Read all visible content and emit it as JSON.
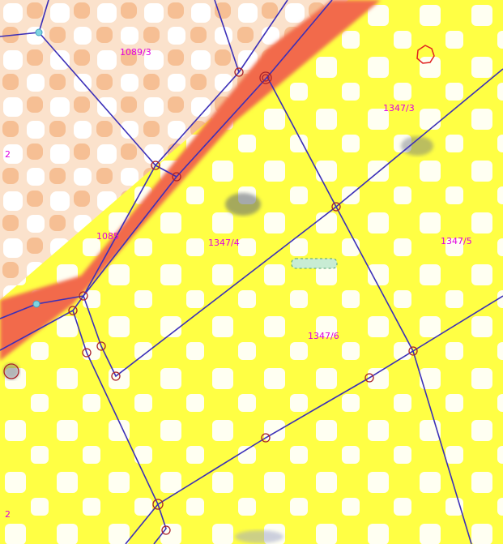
{
  "map": {
    "parcels": [
      {
        "id": "p-1089-3",
        "label": "1089/3"
      },
      {
        "id": "p-1347-3",
        "label": "1347/3"
      },
      {
        "id": "p-1347-4",
        "label": "1347/4"
      },
      {
        "id": "p-1347-5",
        "label": "1347/5"
      },
      {
        "id": "p-1347-6",
        "label": "1347/6"
      },
      {
        "id": "p-road",
        "label": "1085"
      },
      {
        "id": "p-edge-a",
        "label": "2"
      },
      {
        "id": "p-edge-b",
        "label": "2"
      }
    ],
    "colors": {
      "parcel_line": "#3b2fb8",
      "vertex": "#a8202a",
      "label": "#e000e0",
      "road": "#f06a4a",
      "yellow": "#ffff33",
      "peach": "#f8c8a0",
      "survey_marker": "#a0e0c0"
    }
  }
}
